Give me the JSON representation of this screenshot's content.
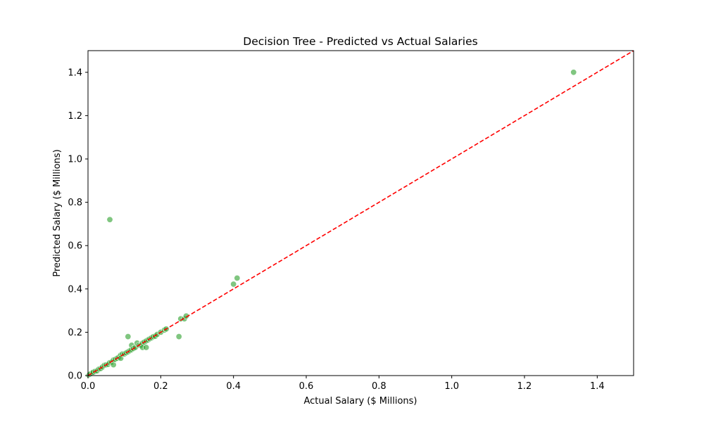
{
  "chart_data": {
    "type": "scatter",
    "title": "Decision Tree - Predicted vs Actual Salaries",
    "xlabel": "Actual Salary ($ Millions)",
    "ylabel": "Predicted Salary ($ Millions)",
    "xlim": [
      0,
      1.5
    ],
    "ylim": [
      0,
      1.5
    ],
    "xticks": [
      "0.0",
      "0.2",
      "0.4",
      "0.6",
      "0.8",
      "1.0",
      "1.2",
      "1.4"
    ],
    "yticks": [
      "0.0",
      "0.2",
      "0.4",
      "0.6",
      "0.8",
      "1.0",
      "1.2",
      "1.4"
    ],
    "grid": false,
    "reference_line": {
      "from": [
        0,
        0
      ],
      "to": [
        1.5,
        1.5
      ],
      "color": "#ff0000",
      "style": "dashed"
    },
    "point_color": "#2ca02c",
    "point_edge_color": "#ffffff",
    "points": [
      [
        0.002,
        0.002
      ],
      [
        0.005,
        0.006
      ],
      [
        0.008,
        0.01
      ],
      [
        0.012,
        0.013
      ],
      [
        0.015,
        0.016
      ],
      [
        0.02,
        0.02
      ],
      [
        0.025,
        0.022
      ],
      [
        0.03,
        0.03
      ],
      [
        0.035,
        0.033
      ],
      [
        0.04,
        0.04
      ],
      [
        0.045,
        0.048
      ],
      [
        0.05,
        0.05
      ],
      [
        0.055,
        0.052
      ],
      [
        0.06,
        0.06
      ],
      [
        0.065,
        0.062
      ],
      [
        0.07,
        0.05
      ],
      [
        0.07,
        0.072
      ],
      [
        0.075,
        0.075
      ],
      [
        0.08,
        0.08
      ],
      [
        0.085,
        0.085
      ],
      [
        0.09,
        0.095
      ],
      [
        0.09,
        0.08
      ],
      [
        0.095,
        0.1
      ],
      [
        0.1,
        0.1
      ],
      [
        0.105,
        0.105
      ],
      [
        0.11,
        0.11
      ],
      [
        0.11,
        0.18
      ],
      [
        0.115,
        0.115
      ],
      [
        0.12,
        0.12
      ],
      [
        0.12,
        0.14
      ],
      [
        0.125,
        0.125
      ],
      [
        0.13,
        0.13
      ],
      [
        0.135,
        0.15
      ],
      [
        0.14,
        0.14
      ],
      [
        0.145,
        0.14
      ],
      [
        0.15,
        0.15
      ],
      [
        0.15,
        0.13
      ],
      [
        0.155,
        0.155
      ],
      [
        0.16,
        0.16
      ],
      [
        0.16,
        0.13
      ],
      [
        0.165,
        0.165
      ],
      [
        0.17,
        0.17
      ],
      [
        0.175,
        0.175
      ],
      [
        0.18,
        0.18
      ],
      [
        0.185,
        0.182
      ],
      [
        0.19,
        0.19
      ],
      [
        0.2,
        0.2
      ],
      [
        0.21,
        0.21
      ],
      [
        0.215,
        0.215
      ],
      [
        0.25,
        0.18
      ],
      [
        0.255,
        0.262
      ],
      [
        0.265,
        0.262
      ],
      [
        0.27,
        0.275
      ],
      [
        0.4,
        0.422
      ],
      [
        0.41,
        0.45
      ],
      [
        0.06,
        0.72
      ],
      [
        1.335,
        1.4
      ]
    ]
  }
}
